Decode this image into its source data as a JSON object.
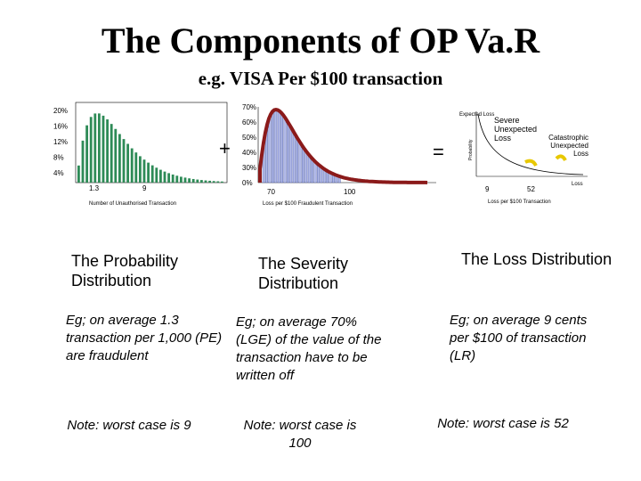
{
  "header": {
    "title": "The Components of OP Va.R",
    "subtitle": "e.g. VISA Per $100 transaction"
  },
  "charts": [
    {
      "yticks": [
        "20%",
        "16%",
        "12%",
        "8%",
        "4%"
      ],
      "xticks": [
        "1.3",
        "9"
      ],
      "xlabel": "Number of Unauthorised Transaction"
    },
    {
      "yticks": [
        "70%",
        "60%",
        "50%",
        "40%",
        "30%",
        "0%"
      ],
      "xticks": [
        "70",
        "100"
      ],
      "xlabel": "Loss per $100 Fraudulent Transaction"
    },
    {
      "ylabel": "Probability",
      "annotations": [
        "Expected Loss",
        "Severe Unexpected Loss",
        "Catastrophic Unexpected Loss"
      ],
      "xaxis": "Loss",
      "xticks": [
        "9",
        "52"
      ],
      "xlabel": "Loss per $100 Transaction"
    }
  ],
  "operators": [
    "+",
    "="
  ],
  "columns": [
    {
      "heading": "The Probability Distribution",
      "description": "Eg; on average 1.3 transaction per 1,000 (PE) are fraudulent",
      "note": "Note: worst case is 9"
    },
    {
      "heading": "The Severity Distribution",
      "description": "Eg; on average 70% (LGE) of the value of the transaction have to be written off",
      "note": "Note: worst case is 100"
    },
    {
      "heading": "The Loss Distribution",
      "description": "Eg; on average 9 cents per $100 of transaction (LR)",
      "note": "Note: worst case is 52"
    }
  ]
}
